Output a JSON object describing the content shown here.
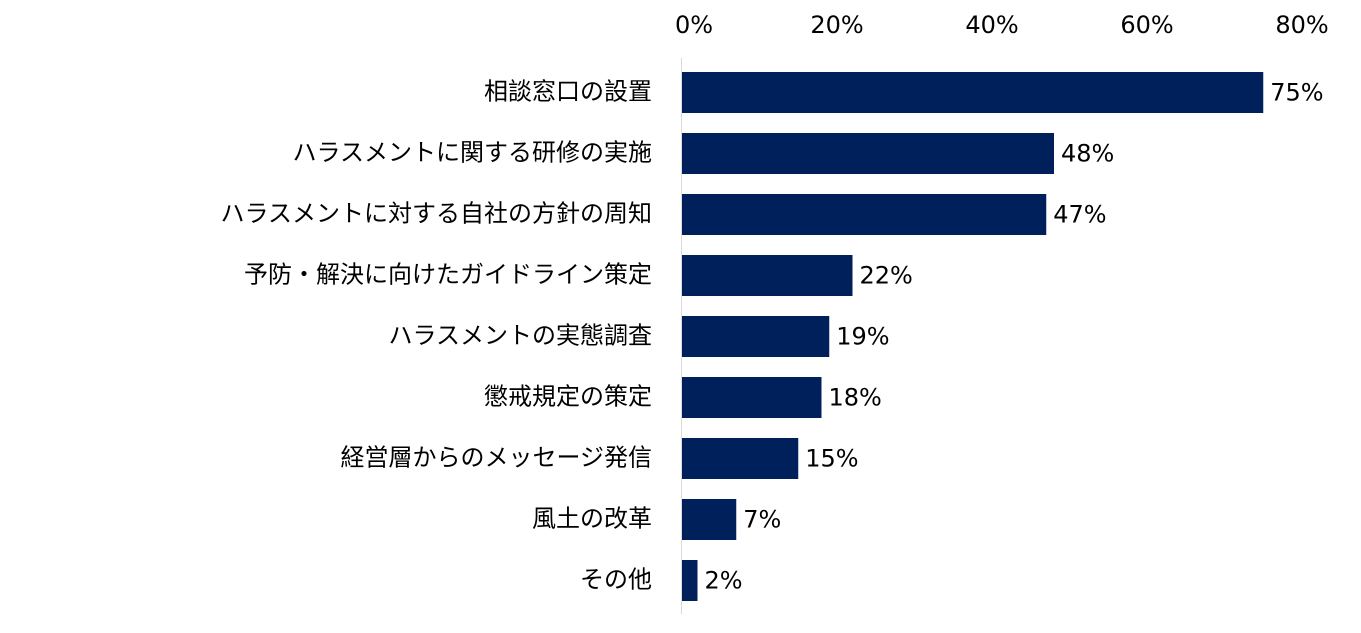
{
  "chart_data": {
    "type": "bar",
    "orientation": "horizontal",
    "title": "",
    "xlabel": "",
    "ylabel": "",
    "xlim": [
      0,
      80
    ],
    "tick_values": [
      0,
      20,
      40,
      60,
      80
    ],
    "tick_labels": [
      "0%",
      "20%",
      "40%",
      "60%",
      "80%"
    ],
    "axis_position": "top",
    "grid": false,
    "legend": "none",
    "bar_color": "#00205B",
    "categories": [
      "相談窓口の設置",
      "ハラスメントに関する研修の実施",
      "ハラスメントに対する自社の方針の周知",
      "予防・解決に向けたガイドライン策定",
      "ハラスメントの実態調査",
      "懲戒規定の策定",
      "経営層からのメッセージ発信",
      "風土の改革",
      "その他"
    ],
    "values": [
      75,
      48,
      47,
      22,
      19,
      18,
      15,
      7,
      2
    ],
    "value_labels": [
      "75%",
      "48%",
      "47%",
      "22%",
      "19%",
      "18%",
      "15%",
      "7%",
      "2%"
    ]
  }
}
